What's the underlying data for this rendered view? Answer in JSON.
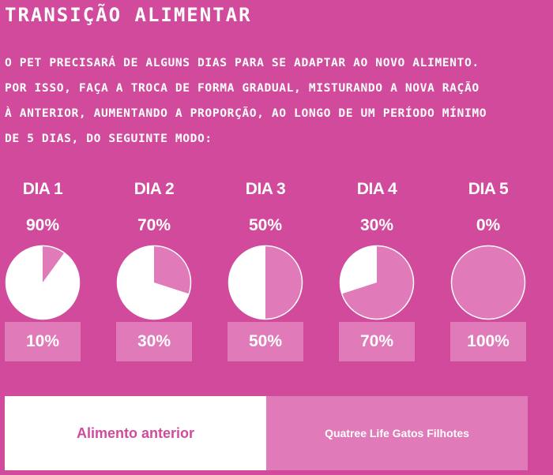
{
  "title": "TRANSIÇÃO ALIMENTAR",
  "description_lines": [
    "O PET PRECISARÁ DE ALGUNS DIAS PARA SE ADAPTAR AO NOVO ALIMENTO.",
    "POR ISSO, FAÇA A TROCA DE FORMA GRADUAL, MISTURANDO A NOVA RAÇÃO",
    "À ANTERIOR, AUMENTANDO A PROPORÇÃO, AO LONGO DE UM PERÍODO MÍNIMO",
    "DE 5 DIAS, DO SEGUINTE MODO:"
  ],
  "colors": {
    "background": "#d14a9c",
    "old_food": "#ffffff",
    "new_food": "#e07ab8"
  },
  "days": [
    {
      "label": "DIA 1",
      "old_label": "90%",
      "new_label": "10%",
      "old_fraction": 0.9
    },
    {
      "label": "DIA 2",
      "old_label": "70%",
      "new_label": "30%",
      "old_fraction": 0.7
    },
    {
      "label": "DIA 3",
      "old_label": "50%",
      "new_label": "50%",
      "old_fraction": 0.5
    },
    {
      "label": "DIA 4",
      "old_label": "30%",
      "new_label": "70%",
      "old_fraction": 0.3
    },
    {
      "label": "DIA 5",
      "old_label": "0%",
      "new_label": "100%",
      "old_fraction": 0.0
    }
  ],
  "legend": {
    "old": "Alimento anterior",
    "new": "Quatree Life Gatos Filhotes"
  }
}
